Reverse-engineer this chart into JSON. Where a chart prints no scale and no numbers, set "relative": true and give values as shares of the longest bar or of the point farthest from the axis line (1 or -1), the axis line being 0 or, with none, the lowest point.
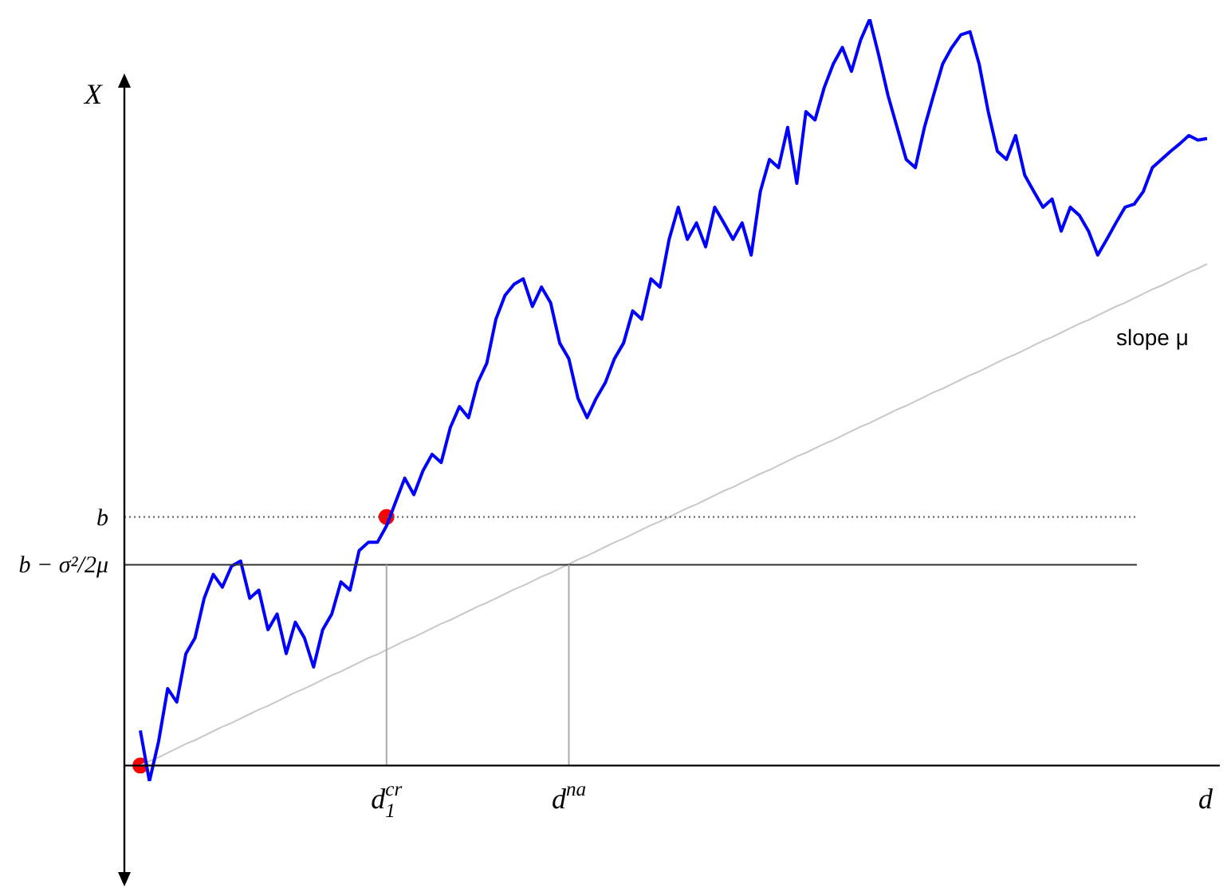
{
  "chart_data": {
    "type": "line",
    "relative": true,
    "ylabel": "X",
    "xlabel": "d",
    "marker": "none",
    "legend": false,
    "categories": [
      null,
      null,
      null,
      null,
      null,
      null,
      null,
      null,
      null,
      null,
      null,
      null,
      null,
      null,
      null,
      null,
      null,
      null,
      null,
      null,
      null,
      null,
      null,
      null,
      null,
      null,
      null,
      "d$_{1}$$^{cr}$",
      null,
      null,
      null,
      null,
      null,
      null,
      null,
      null,
      null,
      null,
      null,
      null,
      null,
      null,
      null,
      null,
      null,
      null,
      null,
      "d$^{na}$",
      null,
      null,
      null,
      null,
      null,
      null,
      null,
      null,
      null,
      null,
      null,
      null,
      null,
      null,
      null,
      null,
      null,
      null,
      null,
      null,
      null,
      null,
      null,
      null,
      null,
      null,
      null,
      null,
      null,
      null,
      null,
      null,
      null,
      null,
      null,
      null,
      null,
      null,
      null,
      null,
      null,
      null,
      null,
      null,
      null,
      null,
      null,
      null,
      null,
      null,
      null,
      null,
      null,
      null,
      null,
      null,
      null,
      null,
      null,
      null,
      null,
      null,
      null,
      null,
      null,
      null,
      null,
      null,
      null,
      null
    ],
    "series": [
      {
        "color": "#0000ff",
        "values": [
          0.047,
          -0.021,
          0.032,
          0.103,
          0.085,
          0.15,
          0.171,
          0.224,
          0.256,
          0.239,
          0.267,
          0.274,
          0.224,
          0.235,
          0.182,
          0.203,
          0.15,
          0.192,
          0.171,
          0.132,
          0.182,
          0.203,
          0.246,
          0.235,
          0.288,
          0.299,
          0.299,
          0.321,
          0.353,
          0.385,
          0.363,
          0.395,
          0.417,
          0.406,
          0.453,
          0.481,
          0.466,
          0.513,
          0.539,
          0.598,
          0.63,
          0.645,
          0.652,
          0.615,
          0.641,
          0.62,
          0.566,
          0.545,
          0.492,
          0.466,
          0.492,
          0.513,
          0.545,
          0.566,
          0.609,
          0.598,
          0.652,
          0.641,
          0.705,
          0.748,
          0.705,
          0.727,
          0.695,
          0.748,
          0.727,
          0.705,
          0.727,
          0.684,
          0.769,
          0.812,
          0.801,
          0.855,
          0.78,
          0.876,
          0.865,
          0.908,
          0.94,
          0.962,
          0.93,
          0.972,
          1,
          0.951,
          0.898,
          0.855,
          0.812,
          0.801,
          0.855,
          0.898,
          0.94,
          0.962,
          0.979,
          0.983,
          0.94,
          0.876,
          0.823,
          0.812,
          0.844,
          0.791,
          0.769,
          0.748,
          0.759,
          0.716,
          0.748,
          0.737,
          0.716,
          0.684,
          0.705,
          0.727,
          0.748,
          0.752,
          0.769,
          0.801,
          0.812,
          0.823,
          0.833,
          0.844,
          0.838,
          0.84
        ]
      },
      {
        "color": "#c8c8c8",
        "values": [
          0,
          0.006,
          0.011,
          0.017,
          0.023,
          0.029,
          0.034,
          0.04,
          0.046,
          0.052,
          0.057,
          0.063,
          0.069,
          0.075,
          0.08,
          0.086,
          0.092,
          0.098,
          0.103,
          0.109,
          0.115,
          0.121,
          0.126,
          0.132,
          0.138,
          0.144,
          0.149,
          0.155,
          0.161,
          0.167,
          0.172,
          0.178,
          0.184,
          0.19,
          0.195,
          0.201,
          0.207,
          0.213,
          0.218,
          0.224,
          0.23,
          0.236,
          0.241,
          0.247,
          0.253,
          0.258,
          0.264,
          0.27,
          0.276,
          0.281,
          0.287,
          0.293,
          0.299,
          0.304,
          0.31,
          0.316,
          0.322,
          0.327,
          0.333,
          0.339,
          0.345,
          0.35,
          0.356,
          0.362,
          0.368,
          0.373,
          0.379,
          0.385,
          0.391,
          0.396,
          0.402,
          0.408,
          0.414,
          0.419,
          0.425,
          0.431,
          0.436,
          0.442,
          0.448,
          0.454,
          0.459,
          0.465,
          0.471,
          0.477,
          0.482,
          0.488,
          0.494,
          0.5,
          0.505,
          0.511,
          0.517,
          0.523,
          0.528,
          0.534,
          0.54,
          0.546,
          0.551,
          0.557,
          0.563,
          0.569,
          0.574,
          0.58,
          0.586,
          0.592,
          0.597,
          0.603,
          0.609,
          0.615,
          0.62,
          0.626,
          0.632,
          0.638,
          0.643,
          0.649,
          0.655,
          0.661,
          0.666,
          0.672
        ]
      },
      {
        "type": "scatter",
        "marker": "circle",
        "color": "#ff0000",
        "values": [
          0,
          null,
          null,
          null,
          null,
          null,
          null,
          null,
          null,
          null,
          null,
          null,
          null,
          null,
          null,
          null,
          null,
          null,
          null,
          null,
          null,
          null,
          null,
          null,
          null,
          null,
          null,
          0.333,
          null,
          null,
          null,
          null,
          null,
          null,
          null,
          null,
          null,
          null,
          null,
          null,
          null,
          null,
          null,
          null,
          null,
          null,
          null,
          null,
          null,
          null,
          null,
          null,
          null,
          null,
          null,
          null,
          null,
          null,
          null,
          null,
          null,
          null,
          null,
          null,
          null,
          null,
          null,
          null,
          null,
          null,
          null,
          null,
          null,
          null,
          null,
          null,
          null,
          null,
          null,
          null,
          null,
          null,
          null,
          null,
          null,
          null,
          null,
          null,
          null,
          null,
          null,
          null,
          null,
          null,
          null,
          null,
          null,
          null,
          null,
          null,
          null,
          null,
          null,
          null,
          null,
          null,
          null,
          null,
          null,
          null,
          null,
          null,
          null,
          null,
          null,
          null,
          null,
          null
        ]
      }
    ],
    "ref_lines": [
      {
        "axis": "y",
        "value": 0.333,
        "label": "b",
        "line_style": "dotted",
        "color": "#555555"
      },
      {
        "axis": "y",
        "value": 0.269,
        "label": "b − σ²/2μ",
        "line_style": "solid",
        "color": "#333333"
      },
      {
        "axis": "x",
        "value": "d$_{1}$$^{cr}$",
        "color": "#aaaaaa"
      },
      {
        "axis": "x",
        "value": "d$^{na}$",
        "color": "#aaaaaa"
      }
    ],
    "annotations": [
      "slope μ"
    ]
  }
}
